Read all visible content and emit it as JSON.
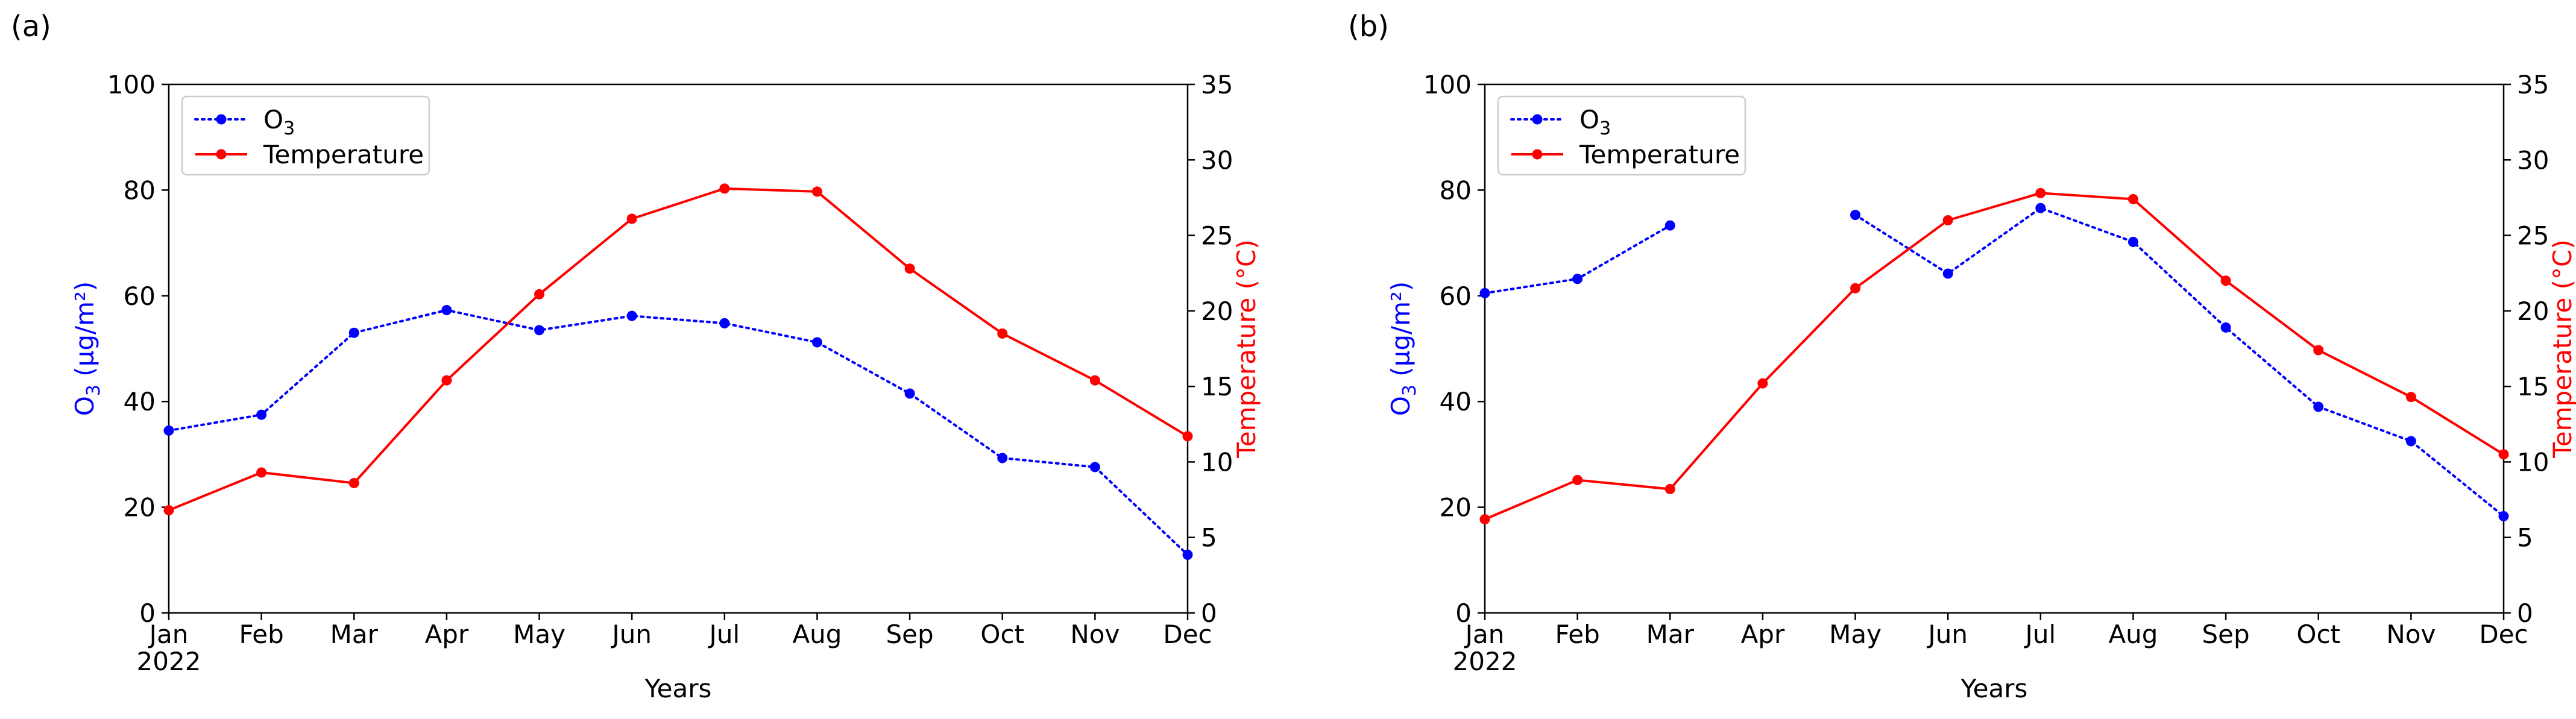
{
  "chart_data": [
    {
      "type": "line",
      "panel_label": "(a)",
      "categories": [
        "Jan",
        "Feb",
        "Mar",
        "Apr",
        "May",
        "Jun",
        "Jul",
        "Aug",
        "Sep",
        "Oct",
        "Nov",
        "Dec"
      ],
      "year_label": "2022",
      "xlabel": "Years",
      "ylabel_left": {
        "main": "O",
        "sub": "3",
        "rest": " (µg/m²)"
      },
      "ylabel_right": "Temperature (°C)",
      "ylim_left": [
        0,
        100
      ],
      "yticks_left": [
        0,
        20,
        40,
        60,
        80,
        100
      ],
      "ylim_right": [
        0,
        35
      ],
      "yticks_right": [
        0,
        5,
        10,
        15,
        20,
        25,
        30,
        35
      ],
      "grid": false,
      "legend_position": "top-left",
      "series": [
        {
          "name": "O",
          "name_sub": "3",
          "axis": "left",
          "color": "#0000ff",
          "style": "dotted",
          "values": [
            34.5,
            37.5,
            53,
            57.3,
            53.5,
            56.2,
            54.8,
            51.2,
            41.5,
            29.3,
            27.6,
            11
          ]
        },
        {
          "name": "Temperature",
          "axis": "right",
          "color": "#ff0000",
          "style": "solid",
          "values": [
            6.8,
            9.3,
            8.6,
            15.4,
            21.1,
            26.1,
            28.1,
            27.9,
            22.8,
            18.5,
            15.4,
            11.7
          ]
        }
      ]
    },
    {
      "type": "line",
      "panel_label": "(b)",
      "categories": [
        "Jan",
        "Feb",
        "Mar",
        "Apr",
        "May",
        "Jun",
        "Jul",
        "Aug",
        "Sep",
        "Oct",
        "Nov",
        "Dec"
      ],
      "year_label": "2022",
      "xlabel": "Years",
      "ylabel_left": {
        "main": "O",
        "sub": "3",
        "rest": " (µg/m²)"
      },
      "ylabel_right": "Temperature (°C)",
      "ylim_left": [
        0,
        100
      ],
      "yticks_left": [
        0,
        20,
        40,
        60,
        80,
        100
      ],
      "ylim_right": [
        0,
        35
      ],
      "yticks_right": [
        0,
        5,
        10,
        15,
        20,
        25,
        30,
        35
      ],
      "grid": false,
      "legend_position": "top-left",
      "series": [
        {
          "name": "O",
          "name_sub": "3",
          "axis": "left",
          "color": "#0000ff",
          "style": "dotted",
          "values": [
            60.5,
            63.2,
            73.3,
            null,
            75.3,
            64.2,
            76.6,
            70.2,
            54,
            39,
            32.5,
            18.3
          ]
        },
        {
          "name": "Temperature",
          "axis": "right",
          "color": "#ff0000",
          "style": "solid",
          "values": [
            6.2,
            8.8,
            8.2,
            15.2,
            21.5,
            26,
            27.8,
            27.4,
            22,
            17.4,
            14.3,
            10.5
          ]
        }
      ]
    }
  ]
}
